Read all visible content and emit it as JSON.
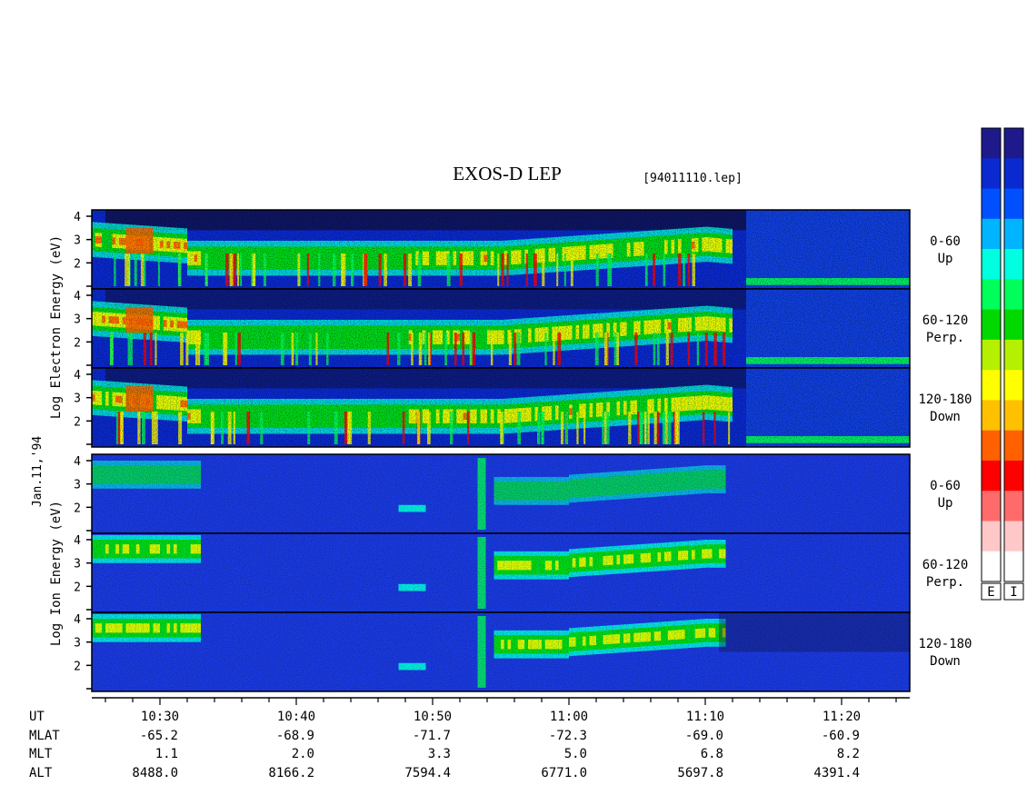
{
  "header": {
    "title": "EXOS-D LEP",
    "filename": "[94011110.lep]"
  },
  "date_label": "Jan.11,'94",
  "colors": {
    "background": "#ffffff",
    "frame": "#000000",
    "panel_base": "#1a2ad6",
    "spectrum": [
      "#1e1a8c",
      "#0a2ad0",
      "#0050ff",
      "#00b4ff",
      "#00ffe0",
      "#00ff5a",
      "#00d800",
      "#b4f000",
      "#ffff00",
      "#ffc000",
      "#ff6000",
      "#ff0000",
      "#ff6a6a",
      "#ffc8c8",
      "#ffffff"
    ]
  },
  "color_bar": {
    "labels": [
      "E",
      "I"
    ]
  },
  "chart_data": {
    "type": "heatmap",
    "instrument": "EXOS-D LEP",
    "file": "[94011110.lep]",
    "date": "Jan.11,'94",
    "x_time": {
      "labels": [
        "10:30",
        "10:40",
        "10:50",
        "11:00",
        "11:10",
        "11:20"
      ],
      "range_minutes": [
        10.3,
        11.42
      ],
      "tick_minutes": [
        630,
        640,
        650,
        660,
        670,
        680
      ],
      "range": [
        "10:25",
        "11:25"
      ]
    },
    "x_minutes_range": [
      625,
      685
    ],
    "y_ticks": [
      "1",
      "2",
      "3",
      "4"
    ],
    "y_range": [
      1,
      4
    ],
    "groups": [
      {
        "key": "electron",
        "ylabel_lines": [
          "Log",
          "Electron",
          "Energy",
          "(eV)"
        ],
        "panels": [
          {
            "angle": "0-60",
            "direction": "Up"
          },
          {
            "angle": "60-120",
            "direction": "Perp."
          },
          {
            "angle": "120-180",
            "direction": "Down"
          }
        ]
      },
      {
        "key": "ion",
        "ylabel_lines": [
          "Log",
          "Ion",
          "Energy",
          "(eV)"
        ],
        "panels": [
          {
            "angle": "0-60",
            "direction": "Up"
          },
          {
            "angle": "60-120",
            "direction": "Perp."
          },
          {
            "angle": "120-180",
            "direction": "Down"
          }
        ]
      }
    ],
    "ephemeris": {
      "row_labels": [
        "UT",
        "MLAT",
        "MLT",
        "ALT"
      ],
      "columns": [
        {
          "ut": "10:30",
          "mlat": "-65.2",
          "mlt": "1.1",
          "alt": "8488.0"
        },
        {
          "ut": "10:40",
          "mlat": "-68.9",
          "mlt": "2.0",
          "alt": "8166.2"
        },
        {
          "ut": "10:50",
          "mlat": "-71.7",
          "mlt": "3.3",
          "alt": "7594.4"
        },
        {
          "ut": "11:00",
          "mlat": "-72.3",
          "mlt": "5.0",
          "alt": "6771.0"
        },
        {
          "ut": "11:10",
          "mlat": "-69.0",
          "mlt": "6.8",
          "alt": "5697.8"
        },
        {
          "ut": "11:20",
          "mlat": "-60.9",
          "mlt": "8.2",
          "alt": "4391.4"
        }
      ]
    }
  }
}
